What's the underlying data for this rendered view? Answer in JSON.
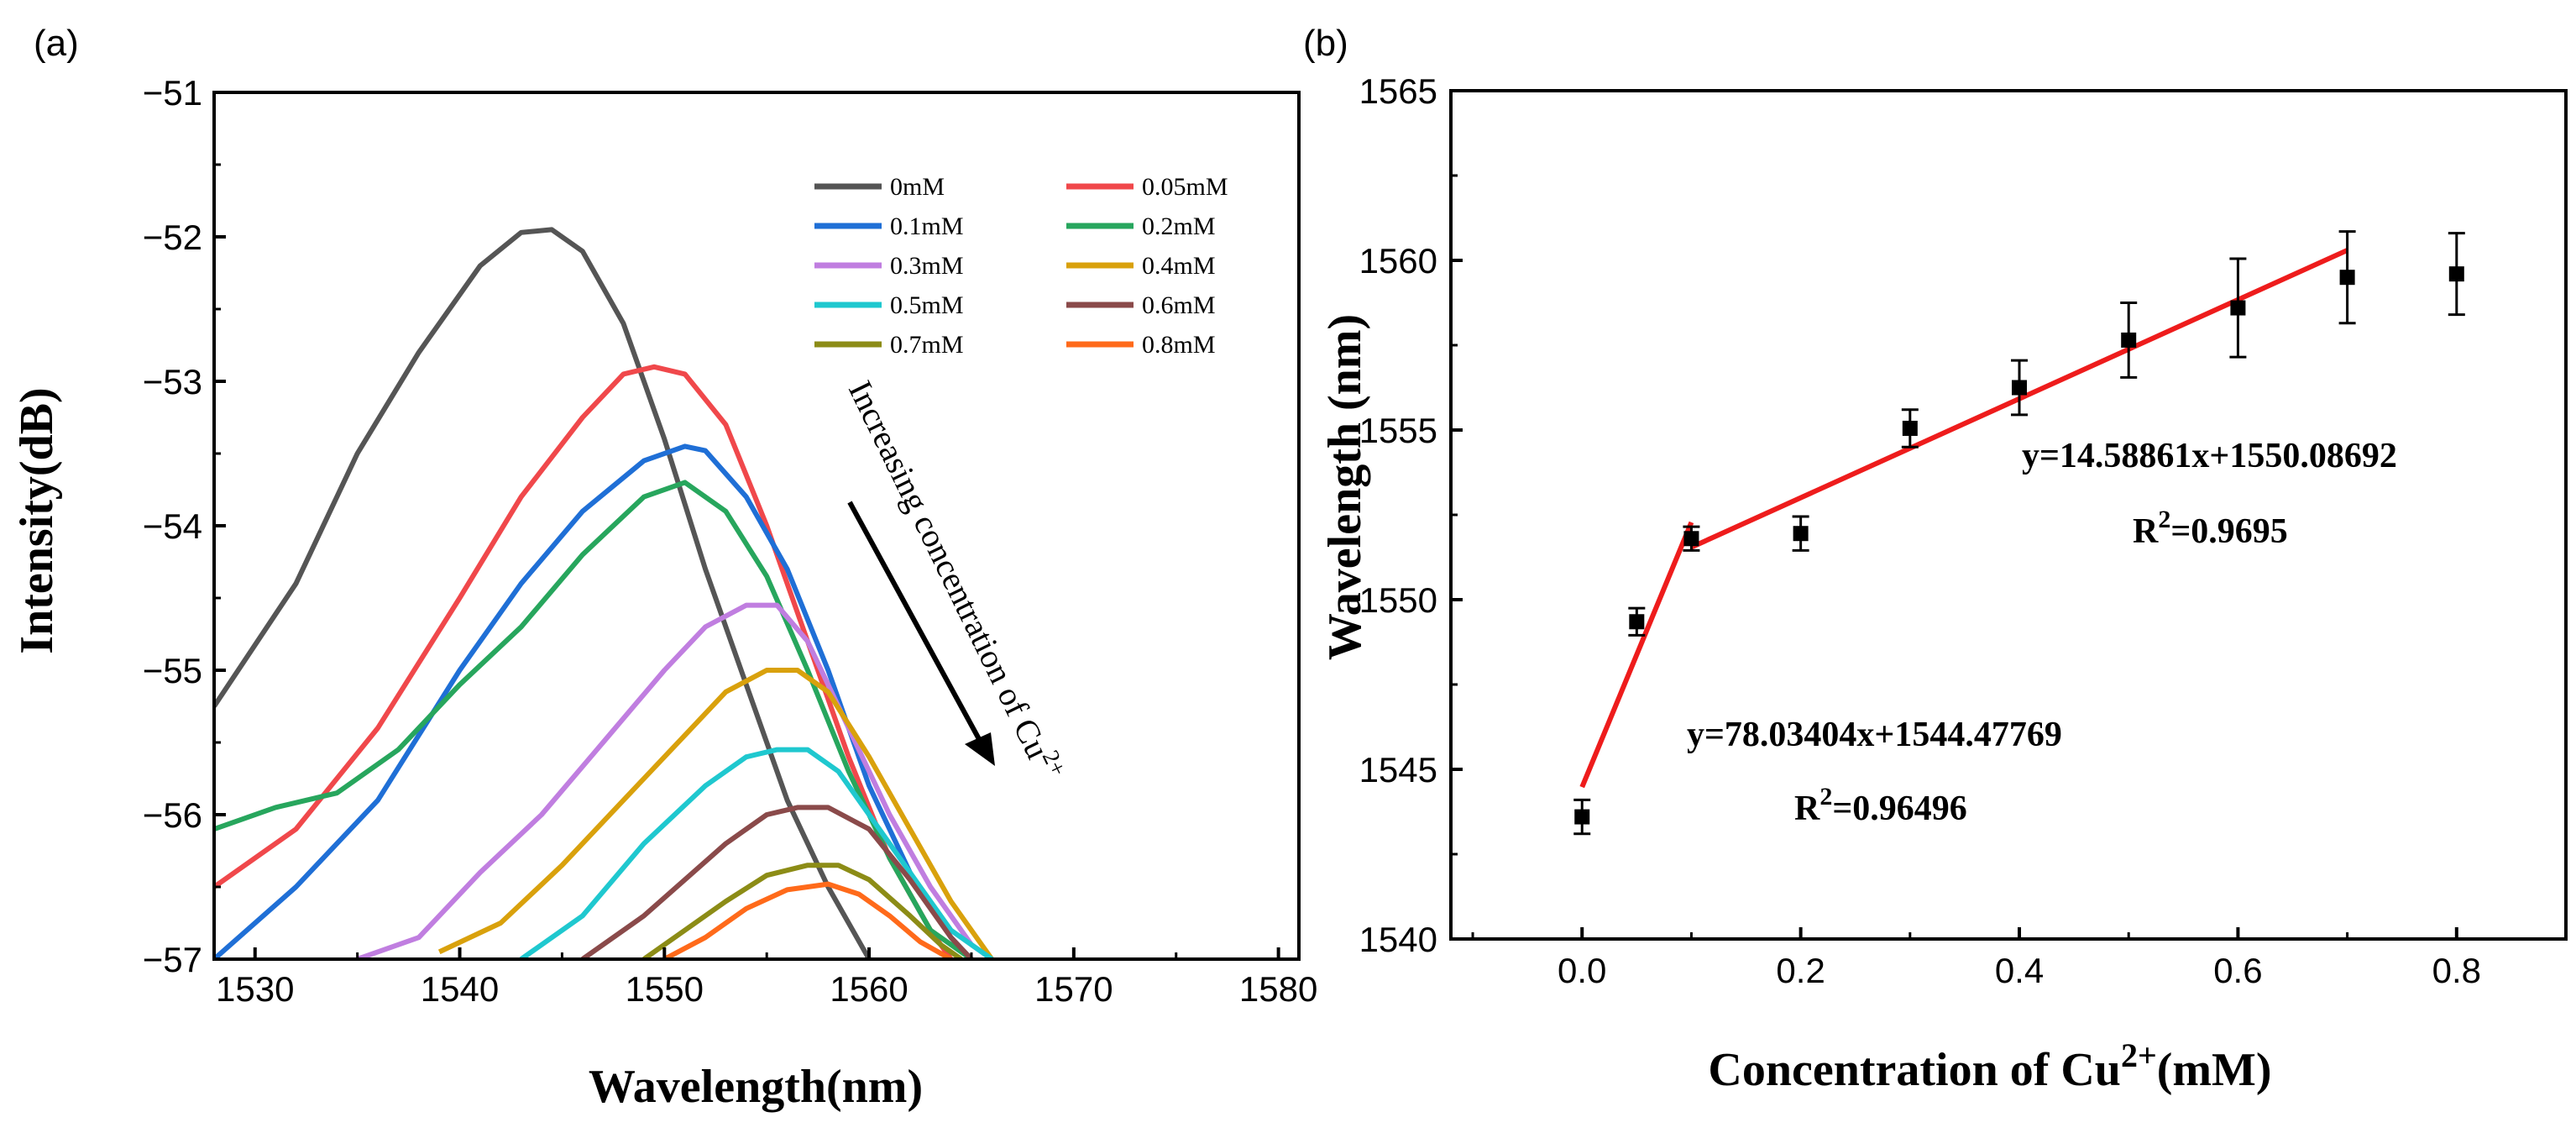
{
  "chart_data": [
    {
      "panel_label": "(a)",
      "type": "line",
      "xlabel": "Wavelength(nm)",
      "ylabel": "Intensity(dB)",
      "xlim": [
        1528,
        1581
      ],
      "ylim": [
        -57,
        -51
      ],
      "xticks": [
        1530,
        1540,
        1550,
        1560,
        1570,
        1580
      ],
      "yticks": [
        -57,
        -56,
        -55,
        -54,
        -53,
        -52,
        -51
      ],
      "ytick_labels": [
        "−57",
        "−56",
        "−55",
        "−54",
        "−53",
        "−52",
        "−51"
      ],
      "grid": false,
      "legend_position": "top-right",
      "annotation": {
        "text": "Increasing concentration of Cu",
        "superscript": "2+"
      },
      "series": [
        {
          "name": "0mM",
          "color": "#555555",
          "x": [
            1528,
            1532,
            1535,
            1538,
            1541,
            1543,
            1544.5,
            1546,
            1548,
            1550,
            1552,
            1554,
            1556,
            1558,
            1560
          ],
          "y": [
            -55.25,
            -54.4,
            -53.5,
            -52.8,
            -52.2,
            -51.97,
            -51.95,
            -52.1,
            -52.6,
            -53.4,
            -54.3,
            -55.1,
            -55.9,
            -56.5,
            -57
          ]
        },
        {
          "name": "0.05mM",
          "color": "#f0484b",
          "x": [
            1528,
            1532,
            1536,
            1540,
            1543,
            1546,
            1548,
            1549.5,
            1551,
            1553,
            1555,
            1557,
            1559,
            1561,
            1563,
            1564
          ],
          "y": [
            -56.5,
            -56.1,
            -55.4,
            -54.5,
            -53.8,
            -53.25,
            -52.95,
            -52.9,
            -52.95,
            -53.3,
            -54.0,
            -54.8,
            -55.6,
            -56.3,
            -56.8,
            -57
          ]
        },
        {
          "name": "0.1mM",
          "color": "#1f6fd6",
          "x": [
            1528,
            1532,
            1536,
            1540,
            1543,
            1546,
            1549,
            1551,
            1552,
            1554,
            1556,
            1558,
            1560,
            1562,
            1564,
            1565
          ],
          "y": [
            -57,
            -56.5,
            -55.9,
            -55.0,
            -54.4,
            -53.9,
            -53.55,
            -53.45,
            -53.48,
            -53.8,
            -54.3,
            -55.0,
            -55.8,
            -56.4,
            -56.85,
            -57
          ]
        },
        {
          "name": "0.2mM",
          "color": "#27a65d",
          "x": [
            1528,
            1531,
            1534,
            1537,
            1540,
            1543,
            1546,
            1549,
            1551,
            1553,
            1555,
            1557,
            1559,
            1561,
            1563,
            1565
          ],
          "y": [
            -56.1,
            -55.95,
            -55.85,
            -55.55,
            -55.1,
            -54.7,
            -54.2,
            -53.8,
            -53.7,
            -53.9,
            -54.35,
            -55.0,
            -55.7,
            -56.3,
            -56.8,
            -57
          ]
        },
        {
          "name": "0.3mM",
          "color": "#c07ee0",
          "x": [
            1535,
            1538,
            1541,
            1544,
            1547,
            1550,
            1552,
            1554,
            1555.5,
            1557,
            1559,
            1561,
            1563,
            1565,
            1566
          ],
          "y": [
            -57,
            -56.85,
            -56.4,
            -56.0,
            -55.5,
            -55.0,
            -54.7,
            -54.55,
            -54.55,
            -54.8,
            -55.4,
            -56.0,
            -56.5,
            -56.9,
            -57
          ]
        },
        {
          "name": "0.4mM",
          "color": "#d9a10c",
          "x": [
            1539,
            1542,
            1545,
            1548,
            1551,
            1553,
            1555,
            1556.5,
            1558,
            1560,
            1562,
            1564,
            1566
          ],
          "y": [
            -56.95,
            -56.75,
            -56.35,
            -55.9,
            -55.45,
            -55.15,
            -55.0,
            -55.0,
            -55.15,
            -55.6,
            -56.1,
            -56.6,
            -57
          ]
        },
        {
          "name": "0.5mM",
          "color": "#1fc8cf",
          "x": [
            1543,
            1546,
            1549,
            1552,
            1554,
            1555.5,
            1557,
            1558.5,
            1560,
            1562,
            1564,
            1566
          ],
          "y": [
            -57,
            -56.7,
            -56.2,
            -55.8,
            -55.6,
            -55.55,
            -55.55,
            -55.7,
            -56.0,
            -56.4,
            -56.8,
            -57
          ]
        },
        {
          "name": "0.6mM",
          "color": "#8a4a4a",
          "x": [
            1546,
            1549,
            1551,
            1553,
            1555,
            1556.5,
            1558,
            1560,
            1562,
            1564,
            1565
          ],
          "y": [
            -57,
            -56.7,
            -56.45,
            -56.2,
            -56.0,
            -55.95,
            -55.95,
            -56.1,
            -56.45,
            -56.85,
            -57
          ]
        },
        {
          "name": "0.7mM",
          "color": "#8c8c16",
          "x": [
            1549,
            1551,
            1553,
            1555,
            1557,
            1558.5,
            1560,
            1562,
            1563.5,
            1564.5
          ],
          "y": [
            -57,
            -56.8,
            -56.6,
            -56.42,
            -56.35,
            -56.35,
            -56.45,
            -56.7,
            -56.9,
            -57
          ]
        },
        {
          "name": "0.8mM",
          "color": "#ff6a1a",
          "x": [
            1550,
            1552,
            1554,
            1556,
            1558,
            1559.5,
            1561,
            1562.5,
            1564
          ],
          "y": [
            -57,
            -56.85,
            -56.65,
            -56.52,
            -56.48,
            -56.55,
            -56.7,
            -56.88,
            -57
          ]
        }
      ]
    },
    {
      "panel_label": "(b)",
      "type": "scatter",
      "xlabel": "Concentration of Cu",
      "xlabel_superscript": "2+",
      "xlabel_suffix": "(mM)",
      "ylabel": "Wavelength (nm)",
      "xlim": [
        -0.12,
        0.9
      ],
      "ylim": [
        1540,
        1565
      ],
      "xticks": [
        0.0,
        0.2,
        0.4,
        0.6,
        0.8
      ],
      "xtick_labels": [
        "0.0",
        "0.2",
        "0.4",
        "0.6",
        "0.8"
      ],
      "yticks": [
        1540,
        1545,
        1550,
        1555,
        1560,
        1565
      ],
      "grid": false,
      "points": {
        "x": [
          0.0,
          0.05,
          0.1,
          0.2,
          0.3,
          0.4,
          0.5,
          0.6,
          0.7,
          0.8
        ],
        "y": [
          1543.6,
          1549.35,
          1551.8,
          1551.95,
          1555.05,
          1556.25,
          1557.65,
          1558.6,
          1559.5,
          1559.6
        ],
        "err": [
          0.5,
          0.4,
          0.35,
          0.5,
          0.55,
          0.8,
          1.1,
          1.45,
          1.35,
          1.2
        ]
      },
      "fits": [
        {
          "equation": "y=78.03404x+1544.47769",
          "r2_prefix": "R",
          "r2_sup": "2",
          "r2_value": "=0.96496",
          "x_range": [
            0.0,
            0.1
          ],
          "slope": 78.03404,
          "intercept": 1544.47769,
          "color": "#ee1c1c"
        },
        {
          "equation": "y=14.58861x+1550.08692",
          "r2_prefix": "R",
          "r2_sup": "2",
          "r2_value": "=0.9695",
          "x_range": [
            0.1,
            0.7
          ],
          "slope": 14.58861,
          "intercept": 1550.08692,
          "color": "#ee1c1c"
        }
      ]
    }
  ]
}
